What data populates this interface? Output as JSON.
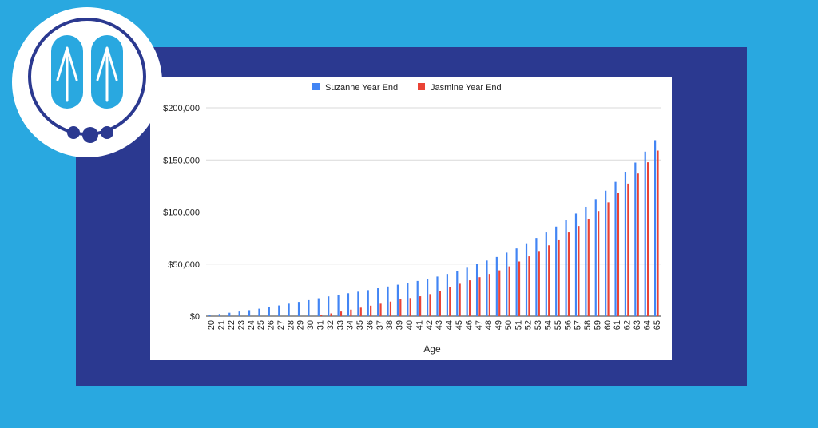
{
  "colors": {
    "background": "#29a8e0",
    "frame": "#2b3990",
    "suzanne": "#4285f4",
    "jasmine": "#ea4335",
    "logo_blue": "#29a8e0",
    "logo_ring": "#2b3990"
  },
  "logo": {
    "icon": "flip-flops-icon"
  },
  "chart_data": {
    "type": "bar",
    "title": "",
    "xlabel": "Age",
    "ylabel": "",
    "ylim": [
      0,
      200000
    ],
    "yticks": [
      "$0",
      "$50,000",
      "$100,000",
      "$150,000",
      "$200,000"
    ],
    "ytick_values": [
      0,
      50000,
      100000,
      150000,
      200000
    ],
    "grid": true,
    "legend": "top-center",
    "categories": [
      "20",
      "21",
      "22",
      "23",
      "24",
      "25",
      "26",
      "27",
      "28",
      "29",
      "30",
      "31",
      "32",
      "33",
      "34",
      "35",
      "36",
      "37",
      "38",
      "39",
      "40",
      "41",
      "42",
      "43",
      "44",
      "45",
      "46",
      "47",
      "48",
      "49",
      "50",
      "51",
      "52",
      "53",
      "54",
      "55",
      "56",
      "57",
      "58",
      "59",
      "60",
      "61",
      "62",
      "63",
      "64",
      "65"
    ],
    "series": [
      {
        "name": "Suzanne Year End",
        "values": [
          1000,
          2100,
          3300,
          4500,
          5800,
          7200,
          8700,
          10300,
          12000,
          13700,
          15400,
          17200,
          19000,
          20700,
          22000,
          23500,
          25000,
          26800,
          28500,
          30200,
          32000,
          33800,
          35800,
          38000,
          40500,
          43300,
          46500,
          50000,
          53400,
          56800,
          61000,
          65000,
          70000,
          75000,
          80400,
          86000,
          92000,
          98500,
          105000,
          112400,
          120500,
          129000,
          138000,
          147500,
          158000,
          169000
        ]
      },
      {
        "name": "Jasmine Year End",
        "values": [
          0,
          0,
          0,
          0,
          0,
          0,
          0,
          0,
          0,
          0,
          0,
          1000,
          2700,
          4500,
          6300,
          8200,
          10100,
          12000,
          14000,
          16100,
          17400,
          19100,
          21200,
          24200,
          27700,
          31100,
          34400,
          37400,
          40500,
          44000,
          47800,
          52500,
          57400,
          62600,
          68000,
          73600,
          80400,
          86500,
          93500,
          101000,
          109300,
          118000,
          127300,
          137000,
          147800,
          159000
        ]
      }
    ]
  }
}
